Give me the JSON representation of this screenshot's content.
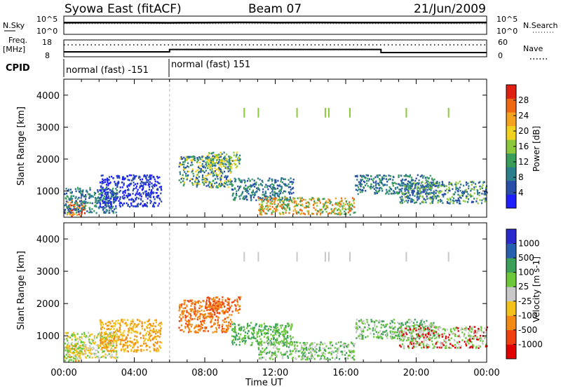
{
  "header": {
    "station": "Syowa East (fitACF)",
    "beam": "Beam 07",
    "date": "21/Jun/2009"
  },
  "top_panels": {
    "nsky_label": "N.Sky",
    "nsearch_label": "N.Search",
    "count_ticks": [
      "10^5",
      "10^0"
    ],
    "freq_label_1": "Freq.",
    "freq_label_2": "[MHz]",
    "freq_ticks": [
      "18",
      "8"
    ],
    "nave_label": "Nave",
    "nave_ticks": [
      "60",
      "0"
    ],
    "cpid_label": "CPID",
    "cpid_segments": [
      {
        "label": "normal (fast) -151",
        "start_hour": 0,
        "end_hour": 6
      },
      {
        "label": "normal (fast) 151",
        "start_hour": 6,
        "end_hour": 24
      }
    ]
  },
  "colors": {
    "power_scale": [
      "#1f1fff",
      "#2a4fa8",
      "#2e7f8c",
      "#3a9e5a",
      "#8cc83c",
      "#f0d21e",
      "#f5a21e",
      "#f06a14",
      "#e02010"
    ],
    "velocity_scale": [
      "#e00000",
      "#f04010",
      "#f28a14",
      "#f2c21a",
      "#c8c8c8",
      "#6cc83a",
      "#3ca05a",
      "#2860b0",
      "#2a2acc"
    ]
  },
  "chart_data": [
    {
      "type": "line",
      "title": "",
      "panel": "N.Sky / N.Search",
      "x": [
        0,
        2,
        4,
        6,
        8,
        10,
        12,
        14,
        16,
        18,
        20,
        22,
        24
      ],
      "series": [
        {
          "name": "N.Sky",
          "values": [
            20000,
            22000,
            21000,
            19000,
            23000,
            25000,
            22000,
            24000,
            23000,
            21000,
            22000,
            23000,
            24000
          ]
        }
      ],
      "ylim": [
        1,
        100000
      ],
      "yscale": "log"
    },
    {
      "type": "line",
      "title": "",
      "panel": "Freq. / Nave",
      "x": [
        0,
        6,
        6,
        18,
        18,
        24
      ],
      "series": [
        {
          "name": "Freq.",
          "values": [
            10.5,
            10.5,
            12.2,
            12.2,
            10.0,
            10.0
          ]
        },
        {
          "name": "Nave",
          "values": [
            45,
            45,
            45,
            45,
            45,
            45
          ]
        }
      ],
      "ylim": [
        8,
        18
      ]
    },
    {
      "type": "heatmap",
      "title": "",
      "panel": "Power",
      "xlabel": "",
      "ylabel": "Slant Range [km]",
      "xlim": [
        0,
        24
      ],
      "ylim": [
        180,
        4500
      ],
      "x_ticks": [
        "00:00",
        "04:00",
        "08:00",
        "12:00",
        "16:00",
        "20:00",
        "00:00"
      ],
      "y_ticks": [
        "1000",
        "2000",
        "3000",
        "4000"
      ],
      "colorbar_label": "Power [dB]",
      "colorbar_ticks": [
        "28",
        "24",
        "20",
        "16",
        "12",
        "8",
        "4"
      ],
      "echo_regions": [
        {
          "t0": 0.0,
          "t1": 1.2,
          "r0": 200,
          "r1": 700,
          "levels": [
            7,
            8,
            6
          ]
        },
        {
          "t0": 0.0,
          "t1": 3.0,
          "r0": 300,
          "r1": 1100,
          "levels": [
            1,
            2,
            3
          ]
        },
        {
          "t0": 2.0,
          "t1": 5.5,
          "r0": 500,
          "r1": 1500,
          "levels": [
            0,
            1
          ]
        },
        {
          "t0": 6.5,
          "t1": 9.5,
          "r0": 1100,
          "r1": 2100,
          "levels": [
            1,
            2,
            3,
            5
          ]
        },
        {
          "t0": 8.0,
          "t1": 10.0,
          "r0": 1700,
          "r1": 2200,
          "levels": [
            5,
            4,
            2
          ]
        },
        {
          "t0": 9.5,
          "t1": 13.0,
          "r0": 700,
          "r1": 1400,
          "levels": [
            2,
            3,
            1
          ]
        },
        {
          "t0": 11.0,
          "t1": 16.5,
          "r0": 250,
          "r1": 800,
          "levels": [
            4,
            6,
            7,
            3
          ]
        },
        {
          "t0": 16.5,
          "t1": 21.0,
          "r0": 900,
          "r1": 1500,
          "levels": [
            1,
            2,
            3
          ]
        },
        {
          "t0": 19.0,
          "t1": 24.0,
          "r0": 600,
          "r1": 1300,
          "levels": [
            1,
            2,
            4
          ]
        }
      ]
    },
    {
      "type": "heatmap",
      "title": "",
      "panel": "Velocity",
      "xlabel": "Time UT",
      "ylabel": "Slant Range [km]",
      "xlim": [
        0,
        24
      ],
      "ylim": [
        180,
        4500
      ],
      "x_ticks": [
        "00:00",
        "04:00",
        "08:00",
        "12:00",
        "16:00",
        "20:00",
        "00:00"
      ],
      "y_ticks": [
        "1000",
        "2000",
        "3000",
        "4000"
      ],
      "colorbar_label": "Velocity [m s-1]",
      "colorbar_ticks": [
        "1000",
        "500",
        "100",
        "25",
        "-25",
        "-100",
        "-500",
        "-1000"
      ],
      "echo_regions": [
        {
          "t0": 0.0,
          "t1": 1.2,
          "r0": 200,
          "r1": 700,
          "levels": [
            3,
            2,
            5
          ]
        },
        {
          "t0": 0.0,
          "t1": 3.0,
          "r0": 300,
          "r1": 1100,
          "levels": [
            3,
            4,
            5
          ]
        },
        {
          "t0": 2.0,
          "t1": 5.5,
          "r0": 500,
          "r1": 1500,
          "levels": [
            2,
            3
          ]
        },
        {
          "t0": 6.5,
          "t1": 9.5,
          "r0": 1100,
          "r1": 2100,
          "levels": [
            2,
            1,
            2
          ]
        },
        {
          "t0": 8.0,
          "t1": 10.0,
          "r0": 1700,
          "r1": 2200,
          "levels": [
            1,
            2
          ]
        },
        {
          "t0": 9.5,
          "t1": 13.0,
          "r0": 700,
          "r1": 1400,
          "levels": [
            5,
            6
          ]
        },
        {
          "t0": 11.0,
          "t1": 16.5,
          "r0": 250,
          "r1": 800,
          "levels": [
            5,
            6,
            4
          ]
        },
        {
          "t0": 16.5,
          "t1": 21.0,
          "r0": 900,
          "r1": 1500,
          "levels": [
            4,
            5,
            6
          ]
        },
        {
          "t0": 19.0,
          "t1": 24.0,
          "r0": 600,
          "r1": 1300,
          "levels": [
            4,
            5,
            0
          ]
        }
      ]
    }
  ]
}
